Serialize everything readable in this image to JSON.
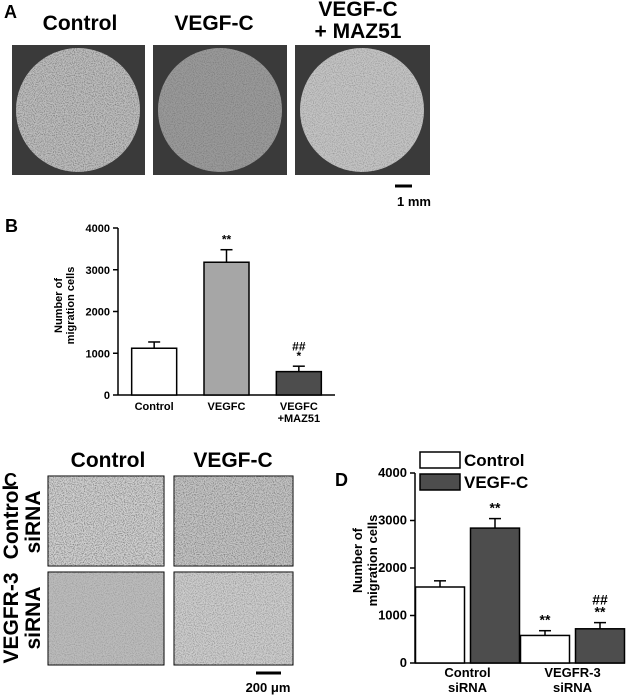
{
  "panel_a": {
    "letter": "A",
    "labels": [
      "Control",
      "VEGF-C",
      "VEGF-C\n+ MAZ51"
    ],
    "scale_bar": "1 mm"
  },
  "panel_c": {
    "letter": "C",
    "columns": [
      "Control",
      "VEGF-C"
    ],
    "rows": [
      "Control\nsiRNA",
      "VEGFR-3\nsiRNA"
    ],
    "scale_bar": "200 μm"
  },
  "chart_data": [
    {
      "type": "bar",
      "panel": "B",
      "ylabel": "Number of\nmigration cells",
      "categories": [
        "Control",
        "VEGFC",
        "VEGFC\n+MAZ51"
      ],
      "values": [
        1120,
        3180,
        560
      ],
      "errors": [
        150,
        300,
        130
      ],
      "colors": [
        "#ffffff",
        "#a6a6a6",
        "#4d4d4d"
      ],
      "labels": [
        [],
        [
          "**"
        ],
        [
          "##",
          "*"
        ]
      ],
      "ylim": [
        0,
        4000
      ],
      "yticks": [
        0,
        1000,
        2000,
        3000,
        4000
      ]
    },
    {
      "type": "grouped-bar",
      "panel": "D",
      "ylabel": "Number of\nmigration cells",
      "categories": [
        "Control\nsiRNA",
        "VEGFR-3\nsiRNA"
      ],
      "series": [
        {
          "name": "Control",
          "color": "#ffffff",
          "values": [
            1600,
            580
          ],
          "errors": [
            130,
            100
          ],
          "labels": [
            [],
            [
              "**"
            ]
          ]
        },
        {
          "name": "VEGF-C",
          "color": "#4d4d4d",
          "values": [
            2840,
            720
          ],
          "errors": [
            200,
            130
          ],
          "labels": [
            [
              "**"
            ],
            [
              "##",
              "**"
            ]
          ]
        }
      ],
      "ylim": [
        0,
        4000
      ],
      "yticks": [
        0,
        1000,
        2000,
        3000,
        4000
      ],
      "legend": "top-left"
    }
  ]
}
